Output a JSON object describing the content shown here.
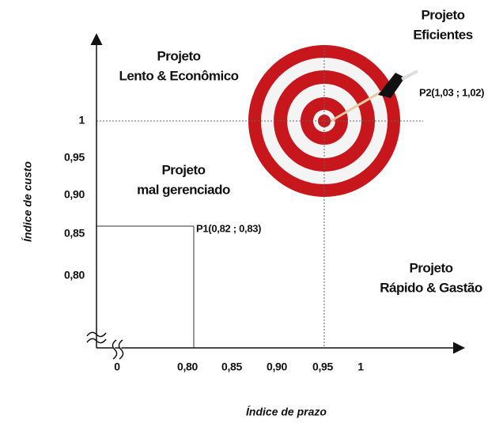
{
  "quadrants": [
    {
      "lines": [
        "Projeto",
        "Lento & Econômico"
      ]
    },
    {
      "lines": [
        "Projeto",
        "Eficientes"
      ]
    },
    {
      "lines": [
        "Projeto",
        "mal gerenciado"
      ]
    },
    {
      "lines": [
        "Projeto",
        "Rápido & Gastão"
      ]
    }
  ],
  "points": [
    {
      "label": "P1(0,82 ; 0,83)",
      "color": "#c0161d"
    },
    {
      "label": "P2(1,03 ; 1,02)",
      "color": "#3a9a3a"
    }
  ],
  "axes": {
    "x": {
      "title": "Índice de prazo",
      "ticks": [
        "0",
        "0,80",
        "0,85",
        "0,90",
        "0,95",
        "1"
      ]
    },
    "y": {
      "title": "Índice de custo",
      "ticks": [
        "1",
        "0,95",
        "0,90",
        "0,85",
        "0,80"
      ]
    }
  }
}
